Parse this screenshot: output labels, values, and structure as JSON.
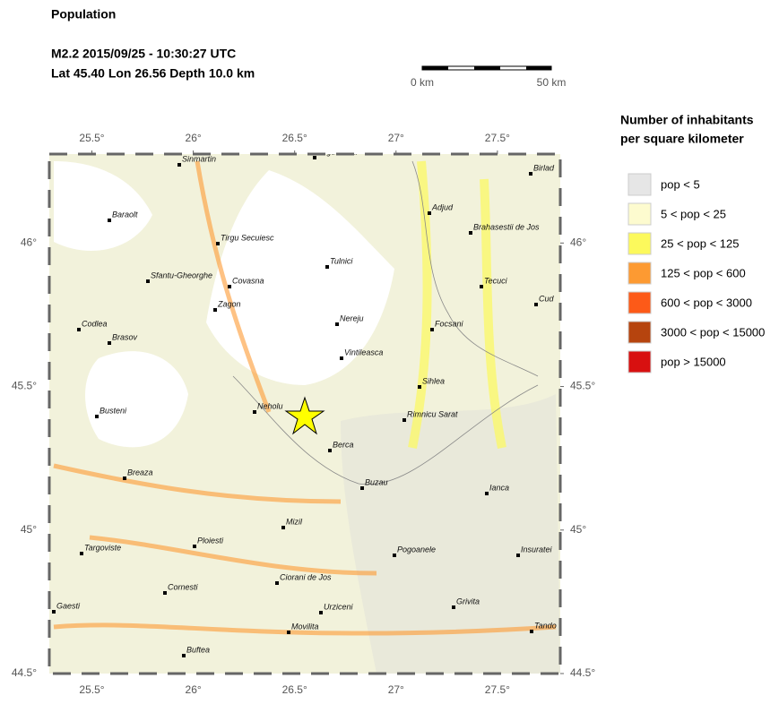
{
  "header": {
    "title": "Population",
    "event": "M2.2  2015/09/25 - 10:30:27 UTC",
    "location": "Lat 45.40    Lon  26.56     Depth  10.0 km"
  },
  "scale_bar": {
    "labels": [
      "0 km",
      "50 km"
    ]
  },
  "map": {
    "xlim": [
      25.29,
      27.81
    ],
    "ylim": [
      44.5,
      46.31
    ],
    "xticks": [
      {
        "value": 25.5,
        "label": "25.5°"
      },
      {
        "value": 26,
        "label": "26°"
      },
      {
        "value": 26.5,
        "label": "26.5°"
      },
      {
        "value": 27,
        "label": "27°"
      },
      {
        "value": 27.5,
        "label": "27.5°"
      }
    ],
    "yticks": [
      {
        "value": 44.5,
        "label": "44.5°"
      },
      {
        "value": 45,
        "label": "45°"
      },
      {
        "value": 45.5,
        "label": "45.5°"
      },
      {
        "value": 46,
        "label": "46°"
      }
    ],
    "cities": [
      "Sinmartin",
      "Tirgu Ocna",
      "Birlad",
      "Baraolt",
      "Adjud",
      "Brahasestii de Jos",
      "Tirgu Secuiesc",
      "Tulnici",
      "Sfantu-Gheorghe",
      "Covasna",
      "Tecuci",
      "Cud",
      "Zagon",
      "Nereju",
      "Focsani",
      "Codlea",
      "Brasov",
      "Vintileasca",
      "Sihlea",
      "Busteni",
      "Neholu",
      "Rimnicu Sarat",
      "Berca",
      "Breaza",
      "Buzau",
      "Ianca",
      "Mizil",
      "Ploiesti",
      "Targoviste",
      "Pogoanele",
      "Insuratei",
      "Ciorani de Jos",
      "Cornesti",
      "Urziceni",
      "Grivita",
      "Gaesti",
      "Tando",
      "Movilita",
      "Buftea"
    ]
  },
  "legend": {
    "title": [
      "Number of inhabitants",
      "per square kilometer"
    ],
    "entries": [
      {
        "label": "pop < 5",
        "color": "#e6e6e6"
      },
      {
        "label": "5 < pop < 25",
        "color": "#fdfbcf"
      },
      {
        "label": "25 < pop < 125",
        "color": "#fcf95c"
      },
      {
        "label": "125 < pop < 600",
        "color": "#fd9a32"
      },
      {
        "label": "600 < pop < 3000",
        "color": "#fd5a18"
      },
      {
        "label": "3000 < pop < 15000",
        "color": "#b6440e"
      },
      {
        "label": "pop > 15000",
        "color": "#d81010"
      }
    ]
  }
}
